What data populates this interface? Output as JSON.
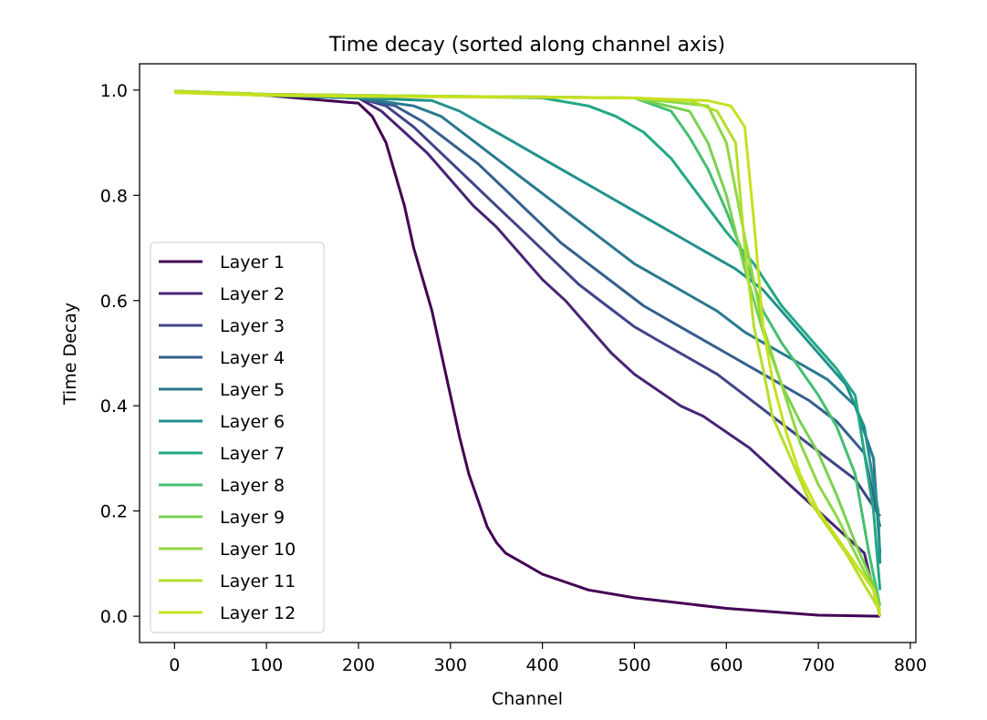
{
  "chart_data": {
    "type": "line",
    "title": "Time decay (sorted along channel axis)",
    "xlabel": "Channel",
    "ylabel": "Time Decay",
    "xlim": [
      -38,
      806
    ],
    "ylim": [
      -0.05,
      1.05
    ],
    "xticks": [
      0,
      100,
      200,
      300,
      400,
      500,
      600,
      700,
      800
    ],
    "yticks": [
      0.0,
      0.2,
      0.4,
      0.6,
      0.8,
      1.0
    ],
    "xtick_labels": [
      "0",
      "100",
      "200",
      "300",
      "400",
      "500",
      "600",
      "700",
      "800"
    ],
    "ytick_labels": [
      "0.0",
      "0.2",
      "0.4",
      "0.6",
      "0.8",
      "1.0"
    ],
    "grid": false,
    "legend_position": "center-left",
    "series": [
      {
        "name": "Layer 1",
        "color": "#440154",
        "x": [
          0,
          100,
          200,
          215,
          230,
          240,
          250,
          260,
          270,
          280,
          290,
          300,
          310,
          320,
          330,
          340,
          350,
          360,
          380,
          400,
          450,
          500,
          600,
          700,
          767
        ],
        "y": [
          0.998,
          0.99,
          0.975,
          0.95,
          0.9,
          0.84,
          0.78,
          0.7,
          0.64,
          0.58,
          0.5,
          0.42,
          0.34,
          0.27,
          0.22,
          0.17,
          0.14,
          0.12,
          0.1,
          0.08,
          0.05,
          0.035,
          0.015,
          0.002,
          0.0
        ]
      },
      {
        "name": "Layer 2",
        "color": "#482475",
        "x": [
          0,
          100,
          200,
          225,
          250,
          275,
          300,
          325,
          350,
          375,
          400,
          425,
          450,
          475,
          500,
          525,
          550,
          575,
          600,
          625,
          650,
          675,
          700,
          725,
          750,
          767
        ],
        "y": [
          0.998,
          0.99,
          0.985,
          0.96,
          0.92,
          0.88,
          0.83,
          0.78,
          0.74,
          0.69,
          0.64,
          0.6,
          0.55,
          0.5,
          0.46,
          0.43,
          0.4,
          0.38,
          0.35,
          0.32,
          0.28,
          0.24,
          0.2,
          0.16,
          0.12,
          0.0
        ]
      },
      {
        "name": "Layer 3",
        "color": "#414487",
        "x": [
          0,
          100,
          200,
          230,
          260,
          290,
          320,
          350,
          380,
          410,
          440,
          470,
          500,
          530,
          560,
          590,
          620,
          650,
          680,
          710,
          740,
          767
        ],
        "y": [
          0.998,
          0.99,
          0.985,
          0.97,
          0.93,
          0.88,
          0.83,
          0.78,
          0.73,
          0.68,
          0.63,
          0.59,
          0.55,
          0.52,
          0.49,
          0.46,
          0.42,
          0.38,
          0.34,
          0.3,
          0.26,
          0.19
        ]
      },
      {
        "name": "Layer 4",
        "color": "#355f8d",
        "x": [
          0,
          100,
          200,
          240,
          270,
          300,
          330,
          360,
          390,
          420,
          450,
          480,
          510,
          540,
          570,
          600,
          630,
          660,
          690,
          720,
          750,
          767
        ],
        "y": [
          0.998,
          0.99,
          0.985,
          0.97,
          0.94,
          0.9,
          0.86,
          0.81,
          0.76,
          0.71,
          0.67,
          0.63,
          0.59,
          0.56,
          0.53,
          0.5,
          0.47,
          0.44,
          0.41,
          0.37,
          0.31,
          0.17
        ]
      },
      {
        "name": "Layer 5",
        "color": "#2a788e",
        "x": [
          0,
          100,
          200,
          260,
          290,
          320,
          350,
          380,
          410,
          440,
          470,
          500,
          530,
          560,
          590,
          620,
          650,
          680,
          710,
          740,
          760,
          767
        ],
        "y": [
          0.998,
          0.99,
          0.985,
          0.97,
          0.95,
          0.91,
          0.87,
          0.83,
          0.79,
          0.75,
          0.71,
          0.67,
          0.64,
          0.61,
          0.58,
          0.54,
          0.51,
          0.48,
          0.45,
          0.4,
          0.3,
          0.12
        ]
      },
      {
        "name": "Layer 6",
        "color": "#21918c",
        "x": [
          0,
          100,
          200,
          280,
          310,
          340,
          370,
          400,
          430,
          460,
          490,
          520,
          550,
          580,
          610,
          640,
          670,
          700,
          730,
          750,
          765,
          767
        ],
        "y": [
          0.998,
          0.99,
          0.985,
          0.98,
          0.96,
          0.93,
          0.9,
          0.87,
          0.84,
          0.81,
          0.78,
          0.75,
          0.72,
          0.69,
          0.66,
          0.62,
          0.56,
          0.5,
          0.44,
          0.36,
          0.2,
          0.1
        ]
      },
      {
        "name": "Layer 7",
        "color": "#22a884",
        "x": [
          0,
          100,
          200,
          300,
          400,
          450,
          480,
          510,
          540,
          570,
          600,
          630,
          660,
          690,
          720,
          740,
          760,
          767
        ],
        "y": [
          0.998,
          0.992,
          0.99,
          0.988,
          0.985,
          0.97,
          0.95,
          0.92,
          0.87,
          0.8,
          0.73,
          0.67,
          0.59,
          0.53,
          0.47,
          0.42,
          0.2,
          0.05
        ]
      },
      {
        "name": "Layer 8",
        "color": "#44bf70",
        "x": [
          0,
          100,
          200,
          300,
          400,
          500,
          540,
          560,
          580,
          600,
          620,
          640,
          660,
          680,
          700,
          720,
          740,
          755,
          767
        ],
        "y": [
          0.998,
          0.992,
          0.99,
          0.988,
          0.987,
          0.985,
          0.96,
          0.91,
          0.85,
          0.77,
          0.68,
          0.58,
          0.52,
          0.47,
          0.42,
          0.36,
          0.27,
          0.12,
          0.02
        ]
      },
      {
        "name": "Layer 9",
        "color": "#7ad151",
        "x": [
          0,
          100,
          200,
          300,
          400,
          500,
          560,
          580,
          600,
          620,
          640,
          660,
          680,
          700,
          720,
          740,
          760,
          767
        ],
        "y": [
          0.998,
          0.992,
          0.99,
          0.988,
          0.987,
          0.985,
          0.96,
          0.9,
          0.8,
          0.66,
          0.54,
          0.44,
          0.37,
          0.31,
          0.23,
          0.14,
          0.06,
          0.02
        ]
      },
      {
        "name": "Layer 10",
        "color": "#8fd744",
        "x": [
          0,
          100,
          200,
          300,
          400,
          500,
          580,
          600,
          620,
          640,
          660,
          680,
          700,
          720,
          740,
          760,
          767
        ],
        "y": [
          0.998,
          0.992,
          0.99,
          0.988,
          0.987,
          0.985,
          0.97,
          0.9,
          0.72,
          0.55,
          0.44,
          0.33,
          0.25,
          0.19,
          0.12,
          0.05,
          0.01
        ]
      },
      {
        "name": "Layer 11",
        "color": "#b5de2b",
        "x": [
          0,
          100,
          200,
          300,
          400,
          500,
          560,
          590,
          610,
          620,
          630,
          640,
          650,
          670,
          690,
          710,
          730,
          750,
          767
        ],
        "y": [
          0.998,
          0.992,
          0.99,
          0.988,
          0.987,
          0.985,
          0.98,
          0.96,
          0.9,
          0.7,
          0.55,
          0.47,
          0.38,
          0.3,
          0.22,
          0.17,
          0.12,
          0.06,
          0.01
        ]
      },
      {
        "name": "Layer 12",
        "color": "#c7e020",
        "x": [
          0,
          100,
          200,
          300,
          400,
          500,
          580,
          605,
          620,
          630,
          640,
          650,
          665,
          680,
          700,
          720,
          740,
          760,
          767
        ],
        "y": [
          0.995,
          0.99,
          0.988,
          0.987,
          0.986,
          0.985,
          0.98,
          0.97,
          0.93,
          0.75,
          0.55,
          0.45,
          0.35,
          0.27,
          0.2,
          0.15,
          0.1,
          0.05,
          0.0
        ]
      }
    ]
  }
}
